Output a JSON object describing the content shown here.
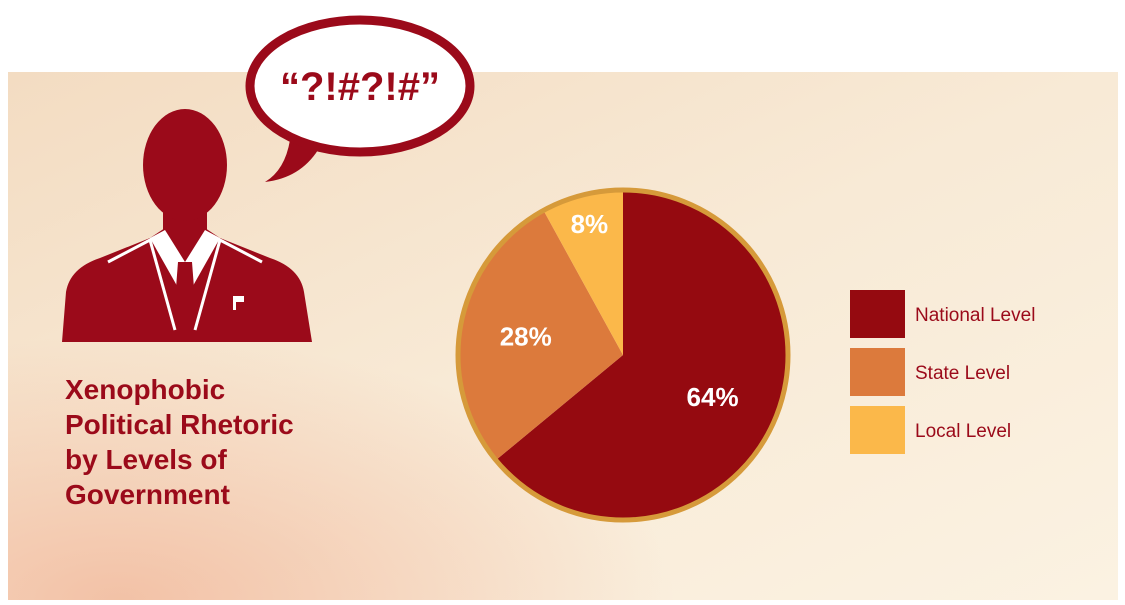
{
  "chart_data": {
    "type": "pie",
    "title": [
      "Xenophobic",
      "Political Rhetoric",
      "by Levels of",
      "Government"
    ],
    "annotation": "“?!#?!#”",
    "categories": [
      "National Level",
      "State Level",
      "Local Level"
    ],
    "values": [
      64,
      28,
      8
    ],
    "value_labels": [
      "64%",
      "28%",
      "8%"
    ],
    "colors": [
      "#950a10",
      "#dc7a3c",
      "#fbb84a"
    ],
    "legend": "right"
  }
}
